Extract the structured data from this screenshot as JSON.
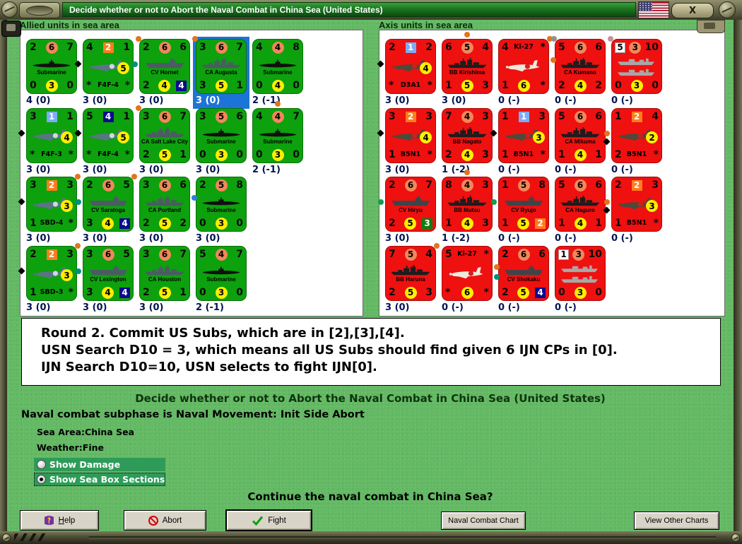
{
  "window": {
    "title": "Decide whether or not to Abort the Naval Combat in China Sea (United States)",
    "close_glyph": "X"
  },
  "colors": {
    "allied_counter": "#0da10d",
    "axis_counter": "#ef1010",
    "selection_highlight": "#1c74d8",
    "radio_bar": "#2f9b59",
    "client_background": "#64b964",
    "orange_circle": "#f1875a",
    "yellow_circle": "#ffee00"
  },
  "panels": [
    {
      "title": "Allied units in sea area",
      "side": "allied",
      "rows": [
        [
          {
            "kind": "sub",
            "name": "Submarine",
            "top": [
              "2",
              "6",
              "7"
            ],
            "topBadge": "oc",
            "bottom": [
              "0",
              "3",
              "0"
            ],
            "status": "4 (0)"
          },
          {
            "kind": "air",
            "name": "F4F-4",
            "top": [
              "4",
              "2",
              "1"
            ],
            "topBadge": "osq",
            "mid": "5",
            "bottom": [
              "*",
              "F4F-4",
              "*"
            ],
            "status": "3 (0)",
            "marks": [
              {
                "p": "w",
                "t": "diamond"
              }
            ]
          },
          {
            "kind": "carrier",
            "name": "CV Hornet",
            "top": [
              "2",
              "6",
              "6"
            ],
            "topBadge": "oc",
            "bottom": [
              "2",
              "4",
              "4"
            ],
            "brBadge": "nsq",
            "status": "3 (0)",
            "marks": [
              {
                "p": "nw",
                "t": "odot"
              },
              {
                "p": "w",
                "t": "tdot"
              }
            ]
          },
          {
            "kind": "ship",
            "name": "CA Augusta",
            "top": [
              "3",
              "6",
              "7"
            ],
            "topBadge": "oc",
            "bottom": [
              "3",
              "5",
              "1"
            ],
            "status": "3 (0)",
            "selected": true,
            "marks": [
              {
                "p": "nw",
                "t": "odot"
              }
            ]
          },
          {
            "kind": "sub",
            "name": "Submarine",
            "top": [
              "4",
              "4",
              "8"
            ],
            "topBadge": "oc",
            "bottom": [
              "0",
              "4",
              "0"
            ],
            "status": "2 (-1)"
          }
        ],
        [
          {
            "kind": "air",
            "name": "F4F-3",
            "top": [
              "3",
              "1",
              "1"
            ],
            "topBadge": "bsq",
            "mid": "4",
            "bottom": [
              "*",
              "F4F-3",
              "*"
            ],
            "status": "3 (0)",
            "marks": [
              {
                "p": "w",
                "t": "diamond"
              }
            ]
          },
          {
            "kind": "air",
            "name": "F4F-4",
            "top": [
              "5",
              "4",
              "1"
            ],
            "topBadge": "nsq",
            "mid": "5",
            "bottom": [
              "*",
              "F4F-4",
              "*"
            ],
            "status": "3 (0)",
            "marks": [
              {
                "p": "w",
                "t": "diamond"
              }
            ]
          },
          {
            "kind": "ship",
            "name": "CA Salt Lake City",
            "top": [
              "3",
              "6",
              "7"
            ],
            "topBadge": "oc",
            "bottom": [
              "2",
              "5",
              "1"
            ],
            "status": "3 (0)",
            "marks": [
              {
                "p": "nw",
                "t": "odot"
              }
            ]
          },
          {
            "kind": "sub",
            "name": "Submarine",
            "top": [
              "3",
              "5",
              "6"
            ],
            "topBadge": "oc",
            "bottom": [
              "0",
              "3",
              "0"
            ],
            "status": "3 (0)"
          },
          {
            "kind": "sub",
            "name": "Submarine",
            "top": [
              "4",
              "4",
              "7"
            ],
            "topBadge": "oc",
            "bottom": [
              "0",
              "3",
              "0"
            ],
            "status": "2 (-1)",
            "marks": [
              {
                "p": "n",
                "t": "odot"
              }
            ]
          }
        ],
        [
          {
            "kind": "air",
            "name": "SBD-4",
            "top": [
              "3",
              "2",
              "3"
            ],
            "topBadge": "osq",
            "mid": "3",
            "bottom": [
              "1",
              "SBD-4",
              "*"
            ],
            "status": "3 (0)",
            "marks": [
              {
                "p": "w",
                "t": "diamond"
              },
              {
                "p": "ne",
                "t": "odot"
              }
            ]
          },
          {
            "kind": "carrier",
            "name": "CV Saratoga",
            "top": [
              "2",
              "6",
              "5"
            ],
            "topBadge": "oc",
            "bottom": [
              "3",
              "4",
              "4"
            ],
            "brBadge": "nsq",
            "status": "3 (0)",
            "marks": [
              {
                "p": "w",
                "t": "tdot"
              },
              {
                "p": "ne",
                "t": "odot"
              }
            ]
          },
          {
            "kind": "ship",
            "name": "CA Portland",
            "top": [
              "3",
              "6",
              "6"
            ],
            "topBadge": "oc",
            "bottom": [
              "2",
              "5",
              "2"
            ],
            "status": "3 (0)",
            "marks": [
              {
                "p": "e",
                "t": "bdot"
              }
            ]
          },
          {
            "kind": "sub",
            "name": "Submarine",
            "top": [
              "2",
              "5",
              "8"
            ],
            "topBadge": "oc",
            "bottom": [
              "0",
              "3",
              "0"
            ],
            "status": "3 (0)"
          }
        ],
        [
          {
            "kind": "air",
            "name": "SBD-3",
            "top": [
              "2",
              "2",
              "3"
            ],
            "topBadge": "osq",
            "mid": "3",
            "bottom": [
              "1",
              "SBD-3",
              "*"
            ],
            "status": "3 (0)",
            "marks": [
              {
                "p": "w",
                "t": "diamond"
              },
              {
                "p": "ne",
                "t": "odot"
              }
            ]
          },
          {
            "kind": "carrier",
            "name": "CV Lexington",
            "top": [
              "3",
              "6",
              "5"
            ],
            "topBadge": "oc",
            "bottom": [
              "3",
              "4",
              "4"
            ],
            "brBadge": "nsq",
            "status": "3 (0)",
            "marks": [
              {
                "p": "w",
                "t": "tdot"
              }
            ]
          },
          {
            "kind": "ship",
            "name": "CA Houston",
            "top": [
              "3",
              "6",
              "7"
            ],
            "topBadge": "oc",
            "bottom": [
              "2",
              "5",
              "1"
            ],
            "status": "3 (0)"
          },
          {
            "kind": "sub",
            "name": "Submarine",
            "top": [
              "5",
              "4",
              "7"
            ],
            "topBadge": "oc",
            "bottom": [
              "0",
              "3",
              "0"
            ],
            "status": "2 (-1)"
          }
        ]
      ]
    },
    {
      "title": "Axis units in sea area",
      "side": "axis",
      "rows": [
        [
          {
            "kind": "air",
            "name": "D3A1",
            "top": [
              "2",
              "1",
              "2"
            ],
            "topBadge": "bsq",
            "mid": "4",
            "bottom": [
              "*",
              "D3A1",
              "*"
            ],
            "status": "3 (0)",
            "marks": [
              {
                "p": "w",
                "t": "diamond"
              }
            ]
          },
          {
            "kind": "ship",
            "name": "BB Kirishima",
            "top": [
              "6",
              "5",
              "4"
            ],
            "topBadge": "oc",
            "bottom": [
              "1",
              "5",
              "3"
            ],
            "status": "3 (0)",
            "marks": [
              {
                "p": "n",
                "t": "odot"
              }
            ]
          },
          {
            "kind": "airtop",
            "name": "Ki-27",
            "top": [
              "4",
              "Ki-27",
              "*"
            ],
            "topBadge": "name",
            "bottom": [
              "1",
              "6",
              "*"
            ],
            "status": "0 (-)",
            "marks": [
              {
                "p": "ne",
                "t": "odot"
              },
              {
                "p": "e",
                "t": "odot"
              }
            ]
          },
          {
            "kind": "ship",
            "name": "CA Kumano",
            "top": [
              "5",
              "6",
              "6"
            ],
            "topBadge": "oc",
            "bottom": [
              "2",
              "4",
              "2"
            ],
            "status": "0 (-)",
            "marks": [
              {
                "p": "nw",
                "t": "gdot"
              }
            ]
          },
          {
            "kind": "convoy",
            "name": "Convoy",
            "top": [
              "5",
              "3",
              "10"
            ],
            "tlBadge": "wsq",
            "topBadge": "oc",
            "bottom": [
              "0",
              "3",
              "0"
            ],
            "status": "0 (-)",
            "marks": [
              {
                "p": "nw",
                "t": "pdot"
              }
            ]
          }
        ],
        [
          {
            "kind": "air",
            "name": "B5N1",
            "top": [
              "3",
              "2",
              "3"
            ],
            "topBadge": "osq",
            "mid": "4",
            "bottom": [
              "1",
              "B5N1",
              "*"
            ],
            "status": "3 (0)",
            "marks": [
              {
                "p": "w",
                "t": "diamond"
              }
            ]
          },
          {
            "kind": "ship",
            "name": "BB Nagato",
            "top": [
              "7",
              "4",
              "3"
            ],
            "topBadge": "oc",
            "bottom": [
              "2",
              "4",
              "3"
            ],
            "status": "1 (-2)"
          },
          {
            "kind": "air",
            "name": "B5N1",
            "top": [
              "1",
              "1",
              "3"
            ],
            "topBadge": "bsq",
            "mid": "3",
            "bottom": [
              "1",
              "B5N1",
              "*"
            ],
            "status": "0 (-)",
            "marks": [
              {
                "p": "w",
                "t": "diamond"
              }
            ]
          },
          {
            "kind": "ship",
            "name": "CA Mikuma",
            "top": [
              "5",
              "6",
              "6"
            ],
            "topBadge": "oc",
            "bottom": [
              "1",
              "4",
              "1"
            ],
            "status": "0 (-)"
          },
          {
            "kind": "air",
            "name": "B5N1",
            "top": [
              "1",
              "2",
              "4"
            ],
            "topBadge": "osq",
            "mid": "2",
            "bottom": [
              "2",
              "B5N1",
              "*"
            ],
            "status": "0 (-)",
            "marks": [
              {
                "p": "w",
                "t": "odot"
              },
              {
                "p": "w2",
                "t": "diamond"
              }
            ]
          }
        ],
        [
          {
            "kind": "carrier",
            "name": "CV Hiryu",
            "top": [
              "2",
              "6",
              "7"
            ],
            "topBadge": "oc",
            "bottom": [
              "2",
              "5",
              "3"
            ],
            "brBadge": "gsq",
            "status": "3 (0)",
            "marks": [
              {
                "p": "w",
                "t": "g2dot"
              }
            ]
          },
          {
            "kind": "ship",
            "name": "BB Mutsu",
            "top": [
              "8",
              "4",
              "3"
            ],
            "topBadge": "oc",
            "bottom": [
              "1",
              "4",
              "3"
            ],
            "status": "1 (-2)",
            "marks": [
              {
                "p": "n",
                "t": "odot"
              }
            ]
          },
          {
            "kind": "carrier",
            "name": "CV Ryujo",
            "top": [
              "1",
              "5",
              "8"
            ],
            "topBadge": "oc",
            "bottom": [
              "1",
              "5",
              "2"
            ],
            "brBadge": "osq",
            "status": "0 (-)",
            "marks": [
              {
                "p": "w",
                "t": "g2dot"
              }
            ]
          },
          {
            "kind": "ship",
            "name": "CA Haguro",
            "top": [
              "5",
              "6",
              "6"
            ],
            "topBadge": "oc",
            "bottom": [
              "1",
              "4",
              "1"
            ],
            "status": "0 (-)"
          },
          {
            "kind": "air",
            "name": "B5N1",
            "top": [
              "2",
              "2",
              "3"
            ],
            "topBadge": "osq",
            "mid": "3",
            "bottom": [
              "1",
              "B5N1",
              "*"
            ],
            "status": "0 (-)",
            "marks": [
              {
                "p": "w",
                "t": "odot"
              },
              {
                "p": "w2",
                "t": "diamond"
              }
            ]
          }
        ],
        [
          {
            "kind": "ship",
            "name": "BB Haruna",
            "top": [
              "7",
              "5",
              "4"
            ],
            "topBadge": "oc",
            "bottom": [
              "2",
              "5",
              "3"
            ],
            "status": "3 (0)",
            "marks": [
              {
                "p": "ne",
                "t": "odot"
              }
            ]
          },
          {
            "kind": "airtop",
            "name": "Ki-27",
            "top": [
              "5",
              "Ki-27",
              "*"
            ],
            "topBadge": "name",
            "bottom": [
              "*",
              "6",
              "*"
            ],
            "status": "0 (-)",
            "marks": [
              {
                "p": "e",
                "t": "odot"
              },
              {
                "p": "e2",
                "t": "tdot"
              }
            ]
          },
          {
            "kind": "carrier",
            "name": "CV Shokaku",
            "top": [
              "2",
              "6",
              "6"
            ],
            "topBadge": "oc",
            "bottom": [
              "2",
              "5",
              "4"
            ],
            "brBadge": "nsq",
            "status": "0 (-)"
          },
          {
            "kind": "convoy",
            "name": "Convoy",
            "top": [
              "1",
              "3",
              "10"
            ],
            "tlBadge": "wsq",
            "topBadge": "oc",
            "bottom": [
              "0",
              "3",
              "0"
            ],
            "status": "0 (-)"
          }
        ]
      ]
    }
  ],
  "message": {
    "lines": [
      "Round 2.  Commit US Subs, which are in [2],[3],[4].",
      "USN Search D10 = 3, which means all US Subs should find given 6 IJN CPs in [0].",
      "IJN Search D10=10, USN selects to fight IJN[0]."
    ]
  },
  "prompt": {
    "headline": "Decide whether or not to Abort the Naval Combat in China Sea (United States)",
    "subphase": "Naval combat subphase is Naval Movement: Init Side Abort",
    "sea_area_label": "Sea Area:",
    "sea_area_value": "China Sea",
    "weather_label": "Weather:",
    "weather_value": "Fine",
    "radios": [
      {
        "label": "Show Damage",
        "selected": false
      },
      {
        "label": "Show Sea Box Sections",
        "selected": true
      }
    ],
    "question": "Continue the naval combat in China Sea?"
  },
  "buttons": {
    "help": "Help",
    "abort": "Abort",
    "fight": "Fight",
    "naval_combat_chart": "Naval Combat Chart",
    "view_other_charts": "View Other Charts"
  }
}
